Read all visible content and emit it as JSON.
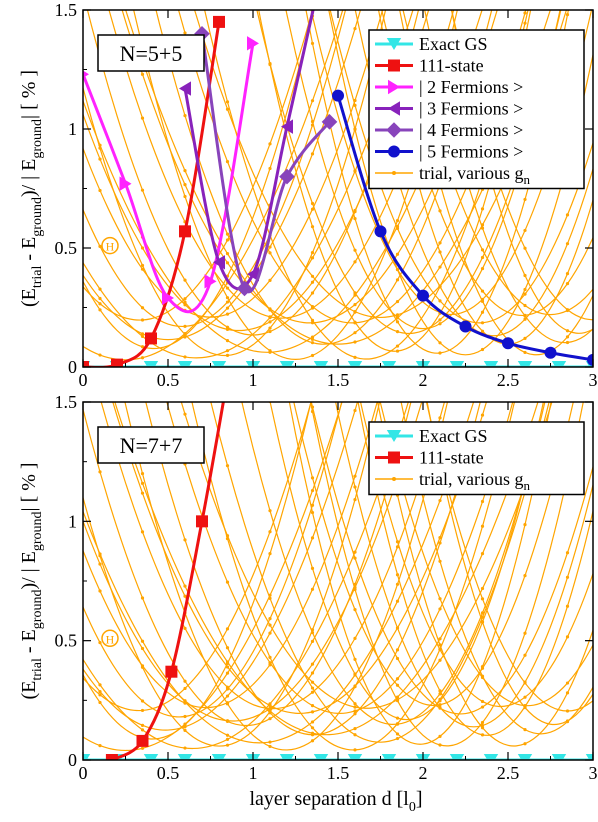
{
  "xlabel": "layer separation d [l",
  "xlabel_sub": "0",
  "xlabel_end": "]",
  "ylabel_parts": [
    "(E",
    "trial",
    " - E",
    "ground",
    ")/ | E",
    "ground",
    "| [ % ]"
  ],
  "theta_symbol": "H",
  "colors": {
    "exact": "#33e6e6",
    "state111": "#ee1111",
    "f2": "#ff22ff",
    "f3": "#8822bb",
    "f4": "#8844bb",
    "f5": "#1111cc",
    "trial": "#ffa500"
  },
  "chart_data": [
    {
      "type": "line",
      "box_label": "N=5+5",
      "xlim": [
        0,
        3
      ],
      "ylim": [
        0,
        1.5
      ],
      "xticks": [
        "0",
        "0.5",
        "1",
        "1.5",
        "2",
        "2.5",
        "3"
      ],
      "yticks": [
        "0",
        "0.5",
        "1",
        "1.5"
      ],
      "legend_position": "top-right",
      "legend": [
        {
          "text": "Exact GS",
          "sub": "",
          "marker": "triangle-down",
          "color": "#33e6e6"
        },
        {
          "text": "111-state",
          "sub": "",
          "marker": "square",
          "color": "#ee1111"
        },
        {
          "text": "| 2 Fermions >",
          "sub": "",
          "marker": "triangle-right",
          "color": "#ff22ff"
        },
        {
          "text": "| 3 Fermions >",
          "sub": "",
          "marker": "triangle-left",
          "color": "#8822bb"
        },
        {
          "text": "| 4 Fermions >",
          "sub": "",
          "marker": "diamond",
          "color": "#8844bb"
        },
        {
          "text": "| 5 Fermions >",
          "sub": "",
          "marker": "circle",
          "color": "#1111cc"
        },
        {
          "text": "trial, various g",
          "sub": "n",
          "marker": "dot",
          "color": "#ffa500"
        }
      ],
      "series": [
        {
          "name": "Exact GS",
          "marker": "triangle-down",
          "color": "#33e6e6",
          "x": [
            0,
            0.2,
            0.4,
            0.6,
            0.8,
            1.0,
            1.2,
            1.4,
            1.6,
            1.8,
            2.0,
            2.2,
            2.4,
            2.6,
            2.8,
            3.0
          ],
          "y": [
            0,
            0,
            0,
            0,
            0,
            0,
            0,
            0,
            0,
            0,
            0,
            0,
            0,
            0,
            0,
            0
          ]
        },
        {
          "name": "111-state",
          "marker": "square",
          "color": "#ee1111",
          "x": [
            0,
            0.2,
            0.4,
            0.6,
            0.8
          ],
          "y": [
            0,
            0.01,
            0.12,
            0.57,
            1.45
          ]
        },
        {
          "name": "| 2 Fermions >",
          "marker": "triangle-right",
          "color": "#ff22ff",
          "x": [
            0,
            0.25,
            0.5,
            0.75,
            1.0
          ],
          "y": [
            1.23,
            0.77,
            0.29,
            0.36,
            1.36
          ]
        },
        {
          "name": "| 3 Fermions >",
          "marker": "triangle-left",
          "color": "#8822bb",
          "x": [
            0.6,
            0.8,
            1.0,
            1.2,
            1.4
          ],
          "y": [
            1.17,
            0.44,
            0.39,
            1.01,
            1.65
          ]
        },
        {
          "name": "| 4 Fermions >",
          "marker": "diamond",
          "color": "#8844bb",
          "x": [
            0.7,
            0.95,
            1.2,
            1.45
          ],
          "y": [
            1.4,
            0.33,
            0.8,
            1.03
          ]
        },
        {
          "name": "| 5 Fermions >",
          "marker": "circle",
          "color": "#1111cc",
          "x": [
            1.5,
            1.75,
            2.0,
            2.25,
            2.5,
            2.75,
            3.0
          ],
          "y": [
            1.14,
            0.57,
            0.3,
            0.17,
            0.1,
            0.06,
            0.03
          ]
        }
      ]
    },
    {
      "type": "line",
      "box_label": "N=7+7",
      "xlim": [
        0,
        3
      ],
      "ylim": [
        0,
        1.5
      ],
      "xticks": [
        "0",
        "0.5",
        "1",
        "1.5",
        "2",
        "2.5",
        "3"
      ],
      "yticks": [
        "0",
        "0.5",
        "1",
        "1.5"
      ],
      "legend_position": "top-right",
      "legend": [
        {
          "text": "Exact GS",
          "sub": "",
          "marker": "triangle-down",
          "color": "#33e6e6"
        },
        {
          "text": "111-state",
          "sub": "",
          "marker": "square",
          "color": "#ee1111"
        },
        {
          "text": "trial, various g",
          "sub": "n",
          "marker": "dot",
          "color": "#ffa500"
        }
      ],
      "series": [
        {
          "name": "Exact GS",
          "marker": "triangle-down",
          "color": "#33e6e6",
          "x": [
            0,
            0.2,
            0.4,
            0.6,
            0.8,
            1.0,
            1.2,
            1.4,
            1.6,
            1.8,
            2.0,
            2.2,
            2.4,
            2.6,
            2.8,
            3.0
          ],
          "y": [
            0,
            0,
            0,
            0,
            0,
            0,
            0,
            0,
            0,
            0,
            0,
            0,
            0,
            0,
            0,
            0
          ]
        },
        {
          "name": "111-state",
          "marker": "square",
          "color": "#ee1111",
          "x": [
            0.17,
            0.35,
            0.52,
            0.7,
            0.85
          ],
          "y": [
            0,
            0.08,
            0.37,
            1.0,
            1.6
          ]
        }
      ]
    }
  ]
}
